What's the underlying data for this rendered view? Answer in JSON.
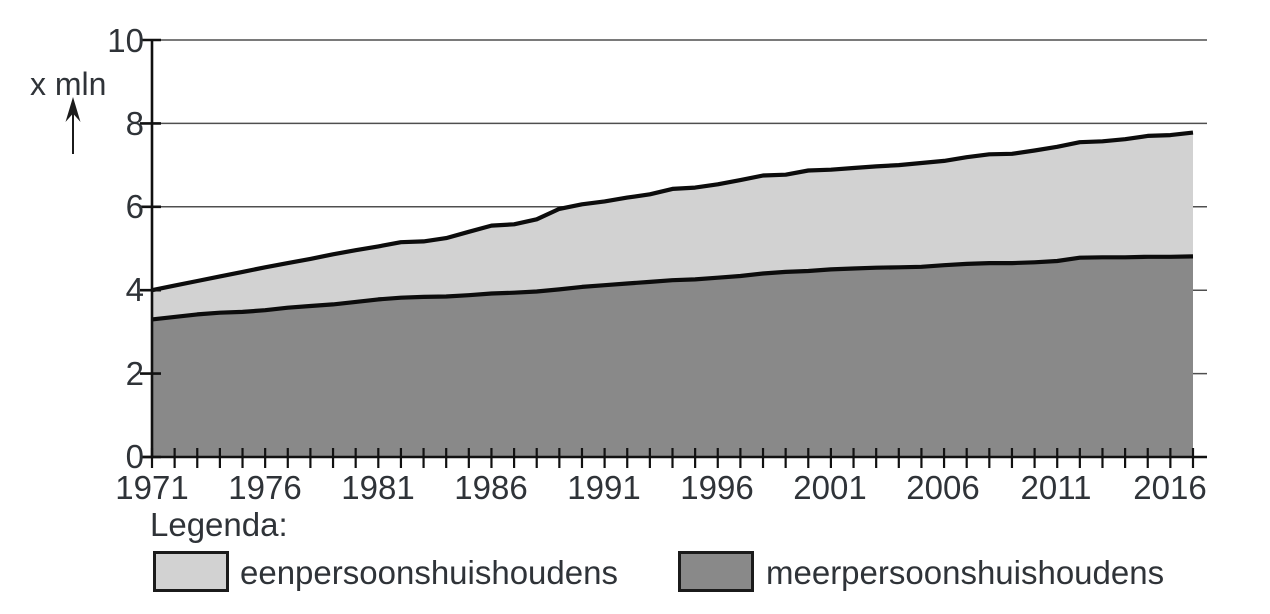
{
  "legend": {
    "title": "Legenda:",
    "items": [
      {
        "label": "eenpersoonshuishoudens",
        "color": "#d2d2d2"
      },
      {
        "label": "meerpersoonshuishoudens",
        "color": "#898989"
      }
    ]
  },
  "chart_data": {
    "type": "area",
    "stacked": true,
    "title": "",
    "xlabel": "",
    "ylabel": "x mln",
    "ylim": [
      0,
      10
    ],
    "grid": "horizontal gridlines at 2, 4, 6, 8, 10",
    "legend_position": "below chart",
    "axis_color": "#111111",
    "gridline_color": "#4f4f4f",
    "line_color": "#0c0c0c",
    "x": [
      1971,
      1972,
      1973,
      1974,
      1975,
      1976,
      1977,
      1978,
      1979,
      1980,
      1981,
      1982,
      1983,
      1984,
      1985,
      1986,
      1987,
      1988,
      1989,
      1990,
      1991,
      1992,
      1993,
      1994,
      1995,
      1996,
      1997,
      1998,
      1999,
      2000,
      2001,
      2002,
      2003,
      2004,
      2005,
      2006,
      2007,
      2008,
      2009,
      2010,
      2011,
      2012,
      2013,
      2014,
      2015,
      2016,
      2017
    ],
    "x_tick_labels": [
      "1971",
      "1976",
      "1981",
      "1986",
      "1991",
      "1996",
      "2001",
      "2006",
      "2011",
      "2016"
    ],
    "y_tick_labels": [
      "10",
      "8",
      "6",
      "4",
      "2",
      "0"
    ],
    "y_ticks": [
      10,
      8,
      6,
      4,
      2,
      0
    ],
    "series": [
      {
        "name": "meerpersoonshuishoudens",
        "color": "#898989",
        "values": [
          3.3,
          3.36,
          3.42,
          3.46,
          3.48,
          3.52,
          3.58,
          3.62,
          3.66,
          3.72,
          3.78,
          3.82,
          3.84,
          3.85,
          3.88,
          3.92,
          3.94,
          3.97,
          4.02,
          4.08,
          4.12,
          4.16,
          4.2,
          4.24,
          4.26,
          4.3,
          4.34,
          4.4,
          4.44,
          4.46,
          4.5,
          4.52,
          4.54,
          4.55,
          4.56,
          4.6,
          4.63,
          4.65,
          4.65,
          4.67,
          4.7,
          4.78,
          4.79,
          4.79,
          4.8,
          4.8,
          4.81
        ]
      },
      {
        "name": "eenpersoonshuishoudens",
        "color": "#d2d2d2",
        "values": [
          0.7,
          0.75,
          0.8,
          0.87,
          0.96,
          1.03,
          1.07,
          1.13,
          1.2,
          1.24,
          1.27,
          1.33,
          1.33,
          1.4,
          1.52,
          1.63,
          1.64,
          1.73,
          1.93,
          1.98,
          2.01,
          2.06,
          2.1,
          2.19,
          2.2,
          2.24,
          2.3,
          2.35,
          2.33,
          2.41,
          2.39,
          2.41,
          2.43,
          2.45,
          2.49,
          2.5,
          2.56,
          2.61,
          2.62,
          2.68,
          2.74,
          2.77,
          2.78,
          2.83,
          2.9,
          2.92,
          2.97
        ]
      }
    ]
  }
}
